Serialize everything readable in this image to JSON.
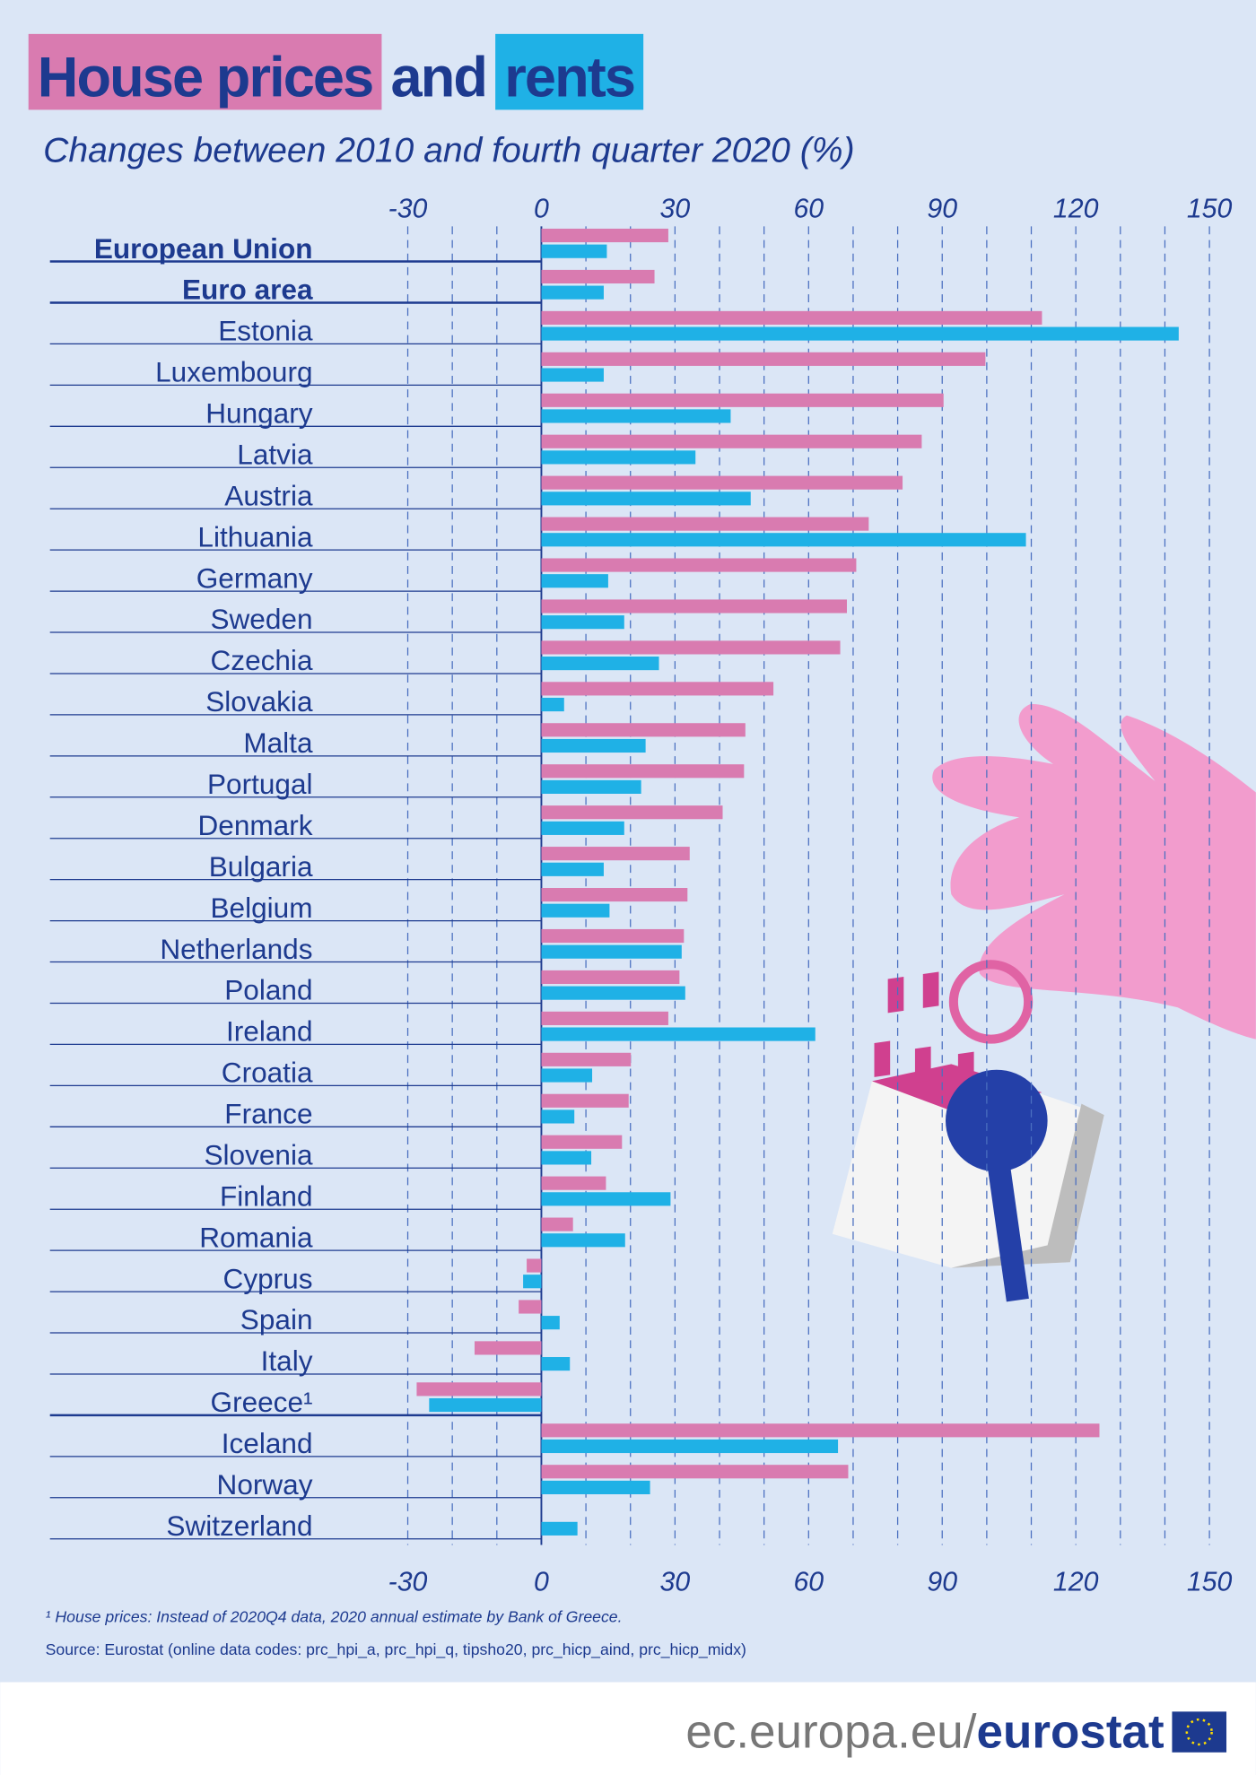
{
  "chart_data": {
    "type": "hbar",
    "title_joiner": "and",
    "subtitle": "Changes between 2010 and fourth quarter 2020 (%)",
    "categories": [
      "European Union",
      "Euro area",
      "Estonia",
      "Luxembourg",
      "Hungary",
      "Latvia",
      "Austria",
      "Lithuania",
      "Germany",
      "Sweden",
      "Czechia",
      "Slovakia",
      "Malta",
      "Portugal",
      "Denmark",
      "Bulgaria",
      "Belgium",
      "Netherlands",
      "Poland",
      "Ireland",
      "Croatia",
      "France",
      "Slovenia",
      "Finland",
      "Romania",
      "Cyprus",
      "Spain",
      "Italy",
      "Greece¹",
      "Iceland",
      "Norway",
      "Switzerland"
    ],
    "series": [
      {
        "name": "House prices",
        "color": "#d97bb0",
        "values": [
          28.5,
          25.4,
          112.4,
          99.7,
          90.3,
          85.4,
          81.1,
          73.5,
          70.7,
          68.6,
          67.1,
          52.1,
          45.8,
          45.5,
          40.7,
          33.3,
          32.8,
          32.0,
          31.0,
          28.5,
          20.1,
          19.6,
          18.1,
          14.5,
          7.1,
          -3.3,
          -5.1,
          -15.0,
          -28.0,
          125.3,
          68.9,
          null
        ]
      },
      {
        "name": "rents",
        "color": "#1fb1e6",
        "values": [
          14.7,
          14.0,
          143.1,
          14.0,
          42.5,
          34.6,
          47.0,
          108.8,
          15.0,
          18.6,
          26.4,
          5.1,
          23.4,
          22.4,
          18.6,
          14.0,
          15.3,
          31.5,
          32.3,
          61.5,
          11.4,
          7.4,
          11.2,
          29.0,
          18.8,
          -4.1,
          4.1,
          6.4,
          -25.2,
          66.6,
          24.4,
          8.1
        ]
      }
    ],
    "xlim": [
      -30,
      150
    ],
    "xticks": [
      -30,
      0,
      30,
      60,
      90,
      120,
      150
    ],
    "xminor_ticks": [
      -20,
      -10,
      10,
      20,
      40,
      50,
      70,
      80,
      100,
      110,
      130,
      140
    ],
    "grid": true,
    "footnote": "¹ House prices: Instead of 2020Q4 data, 2020 annual estimate by Bank of Greece.",
    "source": "Source: Eurostat (online data codes: prc_hpi_a, prc_hpi_q, tipsho20, prc_hicp_aind, prc_hicp_midx)",
    "branding": {
      "domain": "ec.europa.eu/",
      "name": "eurostat"
    }
  }
}
